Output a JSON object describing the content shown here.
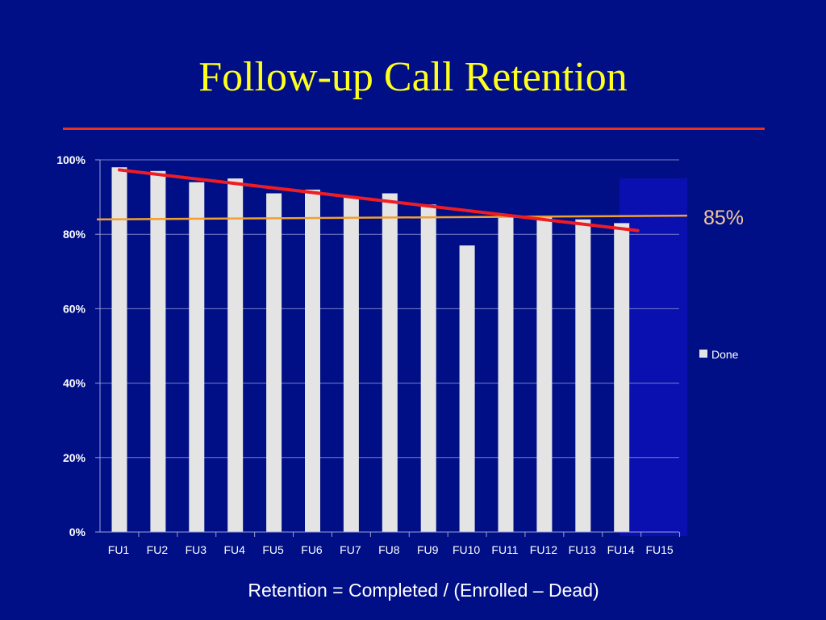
{
  "slide": {
    "title": "Follow-up Call Retention",
    "caption": "Retention = Completed / (Enrolled – Dead)",
    "colors": {
      "background": "#000f86",
      "title": "#ffff1e",
      "rule": "#e8321e",
      "panel": "#0a0fb0"
    }
  },
  "chart_data": {
    "type": "bar",
    "categories": [
      "FU1",
      "FU2",
      "FU3",
      "FU4",
      "FU5",
      "FU6",
      "FU7",
      "FU8",
      "FU9",
      "FU10",
      "FU11",
      "FU12",
      "FU13",
      "FU14",
      "FU15"
    ],
    "series": [
      {
        "name": "Done",
        "color": "#e4e4e4",
        "values": [
          0.98,
          0.97,
          0.94,
          0.95,
          0.91,
          0.92,
          0.9,
          0.91,
          0.88,
          0.77,
          0.85,
          0.85,
          0.84,
          0.83,
          null
        ]
      }
    ],
    "ylim": [
      0,
      1
    ],
    "yticks": [
      0,
      0.2,
      0.4,
      0.6,
      0.8,
      1.0
    ],
    "ytick_labels": [
      "0%",
      "20%",
      "40%",
      "60%",
      "80%",
      "100%"
    ],
    "grid": true,
    "legend": {
      "position": "right",
      "entries": [
        "Done"
      ]
    },
    "trend_line": {
      "color": "#ee1c24",
      "from": {
        "x": "FU1",
        "y": 0.973
      },
      "to": {
        "x": "FU14",
        "y": 0.81
      }
    },
    "reference_line": {
      "value": 0.85,
      "label": "85%",
      "color": "#f0a030",
      "label_color": "#f5c896",
      "start_y": 0.84
    }
  }
}
